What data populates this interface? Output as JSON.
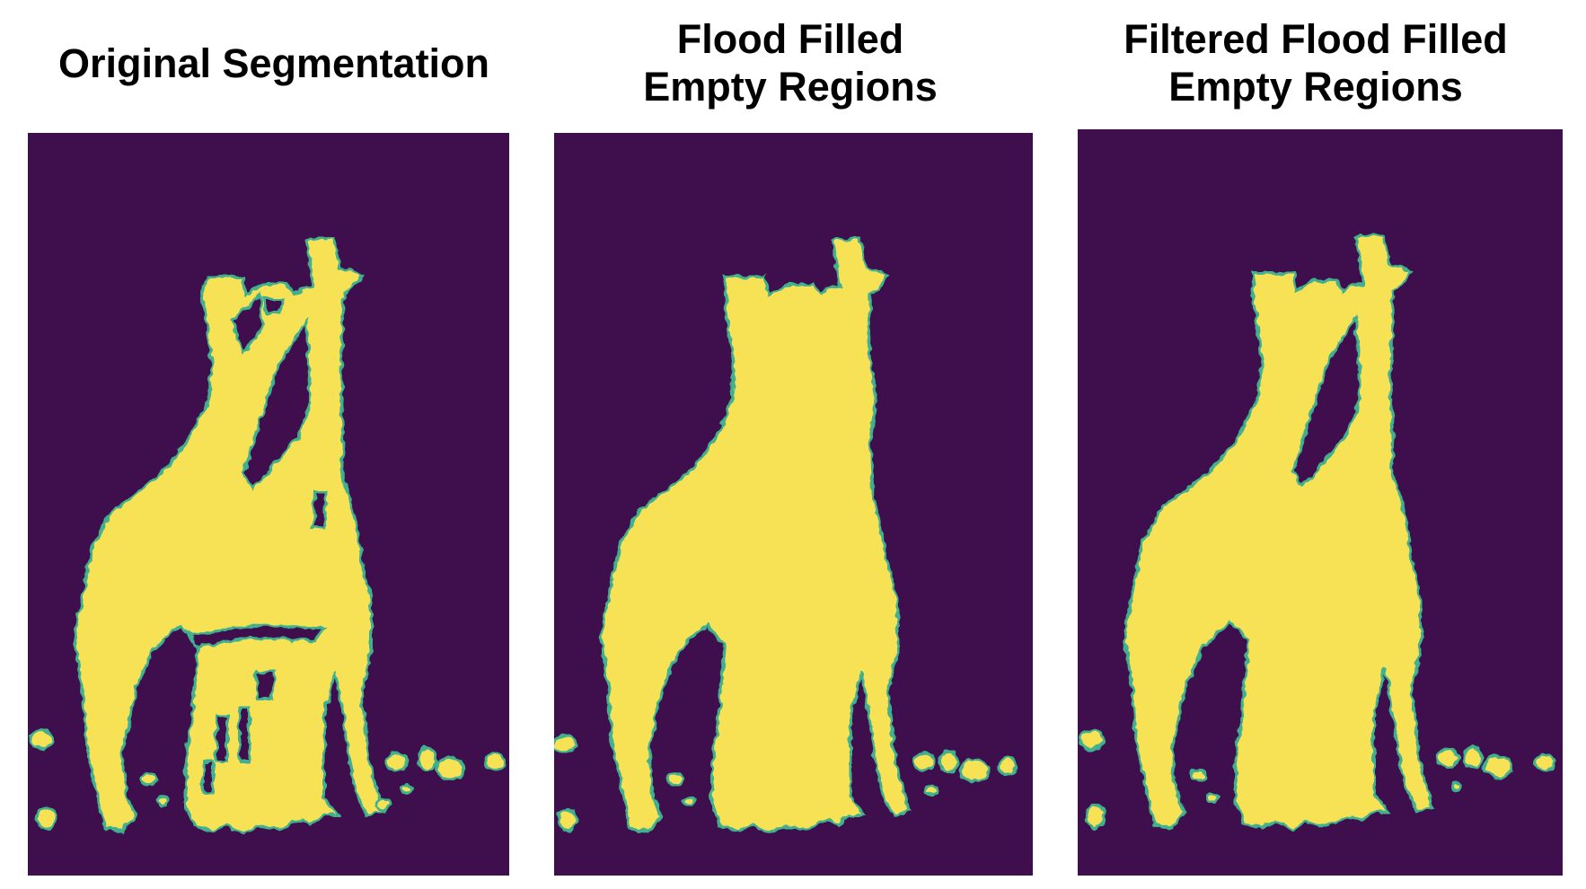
{
  "panels": [
    {
      "title_lines": [
        "Original Segmentation"
      ],
      "variant": "original"
    },
    {
      "title_lines": [
        "Flood Filled",
        "Empty Regions"
      ],
      "variant": "flood_filled"
    },
    {
      "title_lines": [
        "Filtered Flood Filled",
        "Empty Regions"
      ],
      "variant": "filtered"
    }
  ],
  "colors": {
    "background": "#3f0f4d",
    "foreground": "#f7e255",
    "edge": "#3fb08f"
  }
}
